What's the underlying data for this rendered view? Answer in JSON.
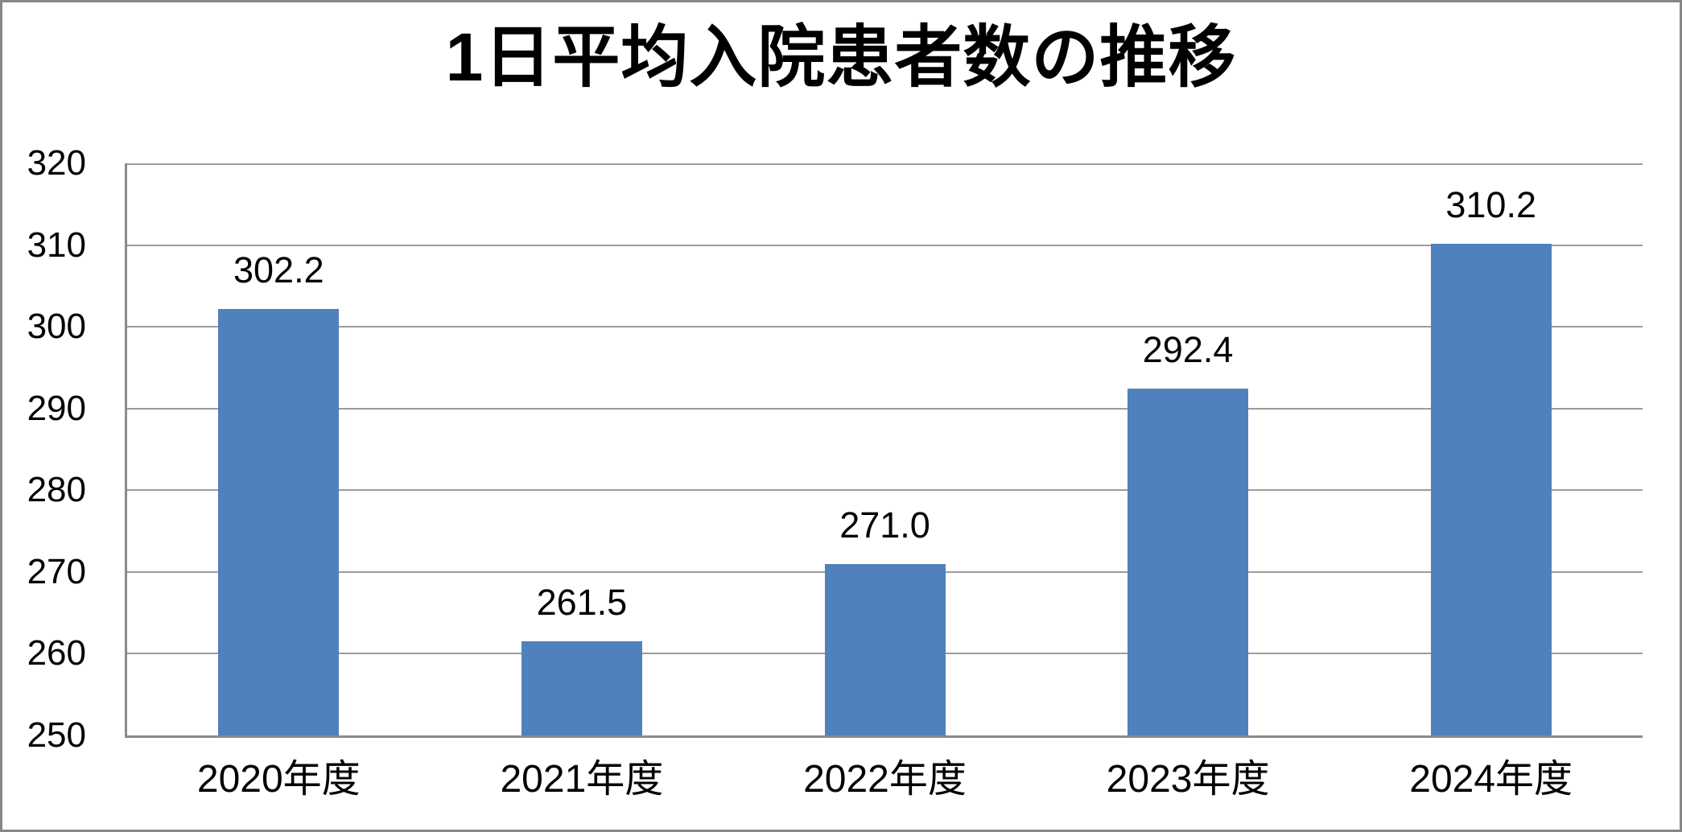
{
  "chart_data": {
    "type": "bar",
    "title": "1日平均入院患者数の推移",
    "categories": [
      "2020年度",
      "2021年度",
      "2022年度",
      "2023年度",
      "2024年度"
    ],
    "values": [
      302.2,
      261.5,
      271.0,
      292.4,
      310.2
    ],
    "data_labels": [
      "302.2",
      "261.5",
      "271.0",
      "292.4",
      "310.2"
    ],
    "ylim": [
      250,
      320
    ],
    "ytick_step": 10,
    "ytick_labels": [
      "250",
      "260",
      "270",
      "280",
      "290",
      "300",
      "310",
      "320"
    ],
    "xlabel": "",
    "ylabel": "",
    "grid": true,
    "legend": false,
    "bar_color": "#4f81bd",
    "gridline_color": "#9c9c9c",
    "axis_color": "#8a8a8a",
    "frame_border_color": "#878787",
    "text_color": "#000000",
    "background_color": "#ffffff"
  }
}
